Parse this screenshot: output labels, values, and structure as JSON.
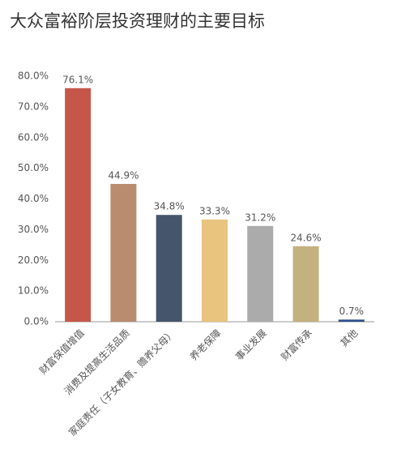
{
  "chart_data": {
    "type": "bar",
    "title": "大众富裕阶层投资理财的主要目标",
    "categories": [
      "财富保值增值",
      "消费及提高生活品质",
      "家庭责任（子女教育、赡养父母）",
      "养老保障",
      "事业发展",
      "财富传承",
      "其他"
    ],
    "values": [
      76.1,
      44.9,
      34.8,
      33.3,
      31.2,
      24.6,
      0.7
    ],
    "value_labels": [
      "76.1%",
      "44.9%",
      "34.8%",
      "33.3%",
      "31.2%",
      "24.6%",
      "0.7%"
    ],
    "colors": [
      "#c5574a",
      "#b98c70",
      "#45566a",
      "#e8c47f",
      "#ababab",
      "#c3b17e",
      "#2d4f8a"
    ],
    "ylim": [
      0,
      80
    ],
    "yticks": [
      {
        "value": 0,
        "label": "0.0%"
      },
      {
        "value": 10,
        "label": "10.0%"
      },
      {
        "value": 20,
        "label": "20.0%"
      },
      {
        "value": 30,
        "label": "30.0%"
      },
      {
        "value": 40,
        "label": "40.0%"
      },
      {
        "value": 50,
        "label": "50.0%"
      },
      {
        "value": 60,
        "label": "60.0%"
      },
      {
        "value": 70,
        "label": "70.0%"
      },
      {
        "value": 80,
        "label": "80.0%"
      }
    ],
    "grid": false
  }
}
